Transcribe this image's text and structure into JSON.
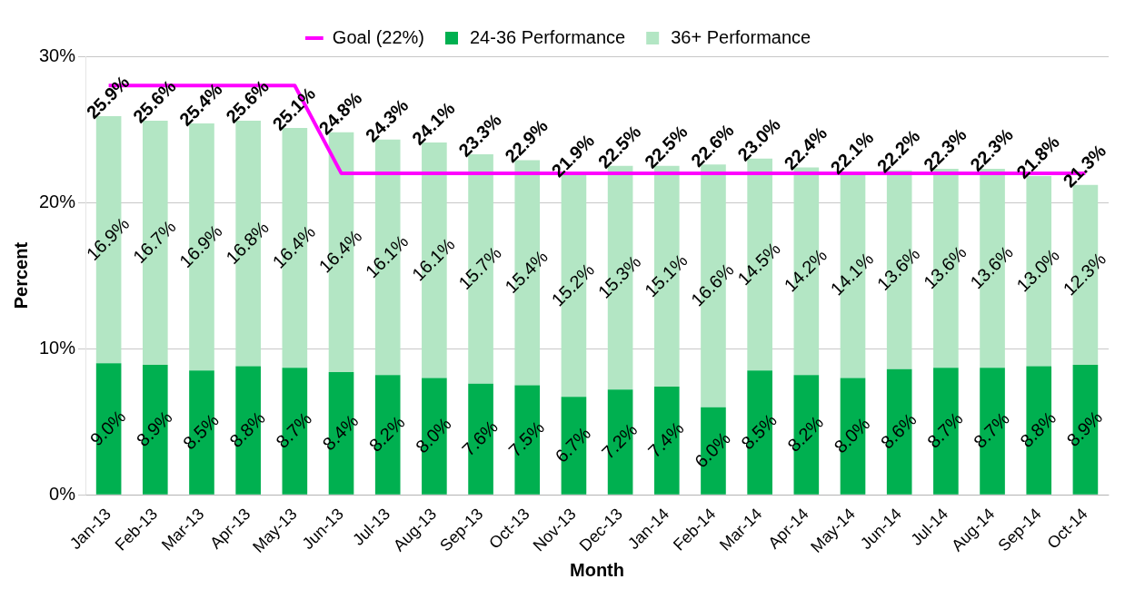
{
  "chart_data": {
    "type": "bar",
    "stacked": true,
    "xlabel": "Month",
    "ylabel": "Percent",
    "legend": "top",
    "grid": "y",
    "ylim": [
      0,
      30
    ],
    "yticks": [
      {
        "value": 0,
        "label": "0%"
      },
      {
        "value": 10,
        "label": "10%"
      },
      {
        "value": 20,
        "label": "20%"
      },
      {
        "value": 30,
        "label": "30%"
      }
    ],
    "categories": [
      "Jan-13",
      "Feb-13",
      "Mar-13",
      "Apr-13",
      "May-13",
      "Jun-13",
      "Jul-13",
      "Aug-13",
      "Sep-13",
      "Oct-13",
      "Nov-13",
      "Dec-13",
      "Jan-14",
      "Feb-14",
      "Mar-14",
      "Apr-14",
      "May-14",
      "Jun-14",
      "Jul-14",
      "Aug-14",
      "Sep-14",
      "Oct-14"
    ],
    "series": [
      {
        "name": "24-36 Performance",
        "color": "#00b050",
        "values": [
          9.0,
          8.9,
          8.5,
          8.8,
          8.7,
          8.4,
          8.2,
          8.0,
          7.6,
          7.5,
          6.7,
          7.2,
          7.4,
          6.0,
          8.5,
          8.2,
          8.0,
          8.6,
          8.7,
          8.7,
          8.8,
          8.9
        ],
        "value_labels": [
          "9.0%",
          "8.9%",
          "8.5%",
          "8.8%",
          "8.7%",
          "8.4%",
          "8.2%",
          "8.0%",
          "7.6%",
          "7.5%",
          "6.7%",
          "7.2%",
          "7.4%",
          "6.0%",
          "8.5%",
          "8.2%",
          "8.0%",
          "8.6%",
          "8.7%",
          "8.7%",
          "8.8%",
          "8.9%"
        ]
      },
      {
        "name": "36+ Performance",
        "color": "#b3e6c4",
        "values": [
          16.9,
          16.7,
          16.9,
          16.8,
          16.4,
          16.4,
          16.1,
          16.1,
          15.7,
          15.4,
          15.2,
          15.3,
          15.1,
          16.6,
          14.5,
          14.2,
          14.1,
          13.6,
          13.6,
          13.6,
          13.0,
          12.3
        ],
        "value_labels": [
          "16.9%",
          "16.7%",
          "16.9%",
          "16.8%",
          "16.4%",
          "16.4%",
          "16.1%",
          "16.1%",
          "15.7%",
          "15.4%",
          "15.2%",
          "15.3%",
          "15.1%",
          "16.6%",
          "14.5%",
          "14.2%",
          "14.1%",
          "13.6%",
          "13.6%",
          "13.6%",
          "13.0%",
          "12.3%"
        ]
      },
      {
        "name": "Goal (22%)",
        "type": "line",
        "color": "#ff00ff",
        "marker": "none",
        "values": [
          28,
          28,
          28,
          28,
          28,
          22,
          22,
          22,
          22,
          22,
          22,
          22,
          22,
          22,
          22,
          22,
          22,
          22,
          22,
          22,
          22,
          22
        ]
      }
    ],
    "totals": [
      "25.9%",
      "25.6%",
      "25.4%",
      "25.6%",
      "25.1%",
      "24.8%",
      "24.3%",
      "24.1%",
      "23.3%",
      "22.9%",
      "21.9%",
      "22.5%",
      "22.5%",
      "22.6%",
      "23.0%",
      "22.4%",
      "22.1%",
      "22.2%",
      "22.3%",
      "22.3%",
      "21.8%",
      "21.3%"
    ]
  }
}
